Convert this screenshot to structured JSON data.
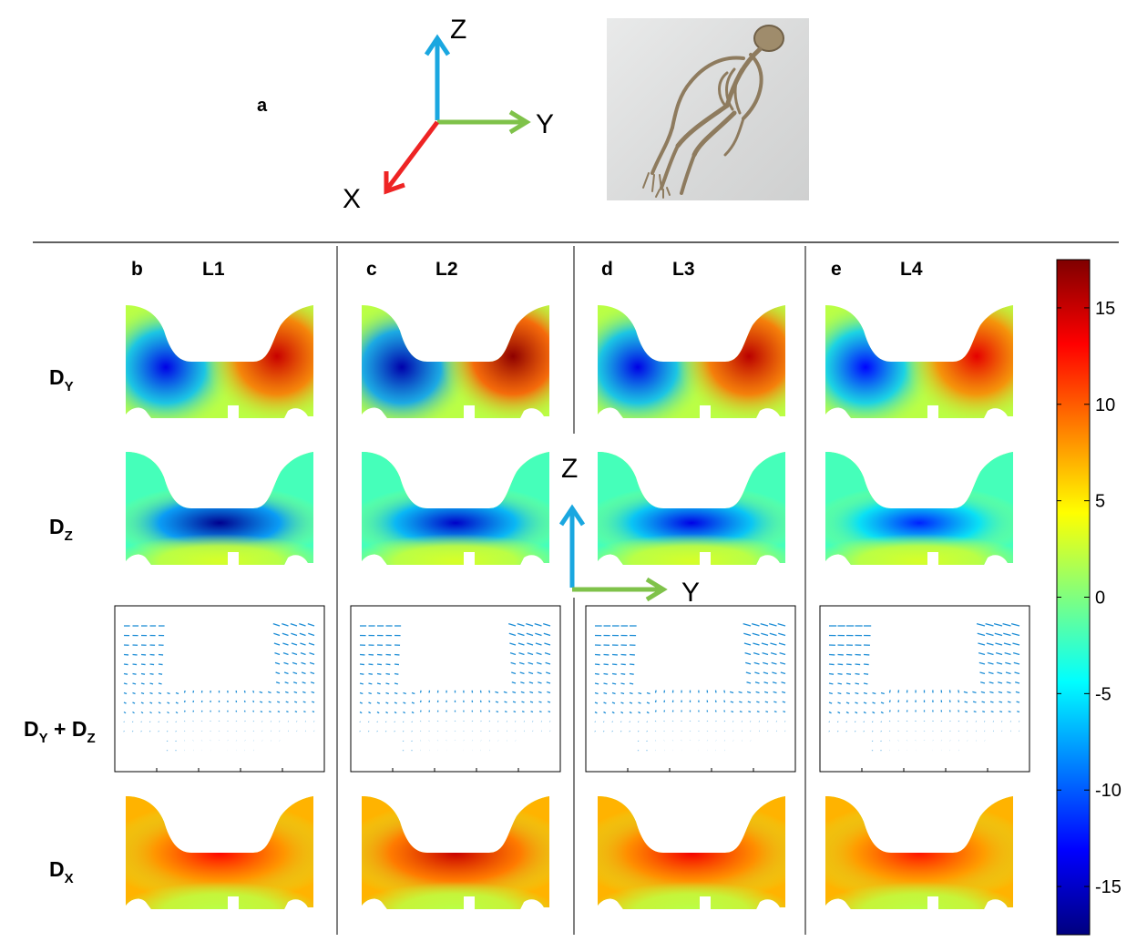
{
  "panel_a_label": "a",
  "axes_top": {
    "z": "Z",
    "y": "Y",
    "x": "X"
  },
  "axes_mid": {
    "z": "Z",
    "y": "Y"
  },
  "columns": [
    {
      "letter": "b",
      "level": "L1"
    },
    {
      "letter": "c",
      "level": "L2"
    },
    {
      "letter": "d",
      "level": "L3"
    },
    {
      "letter": "e",
      "level": "L4"
    }
  ],
  "rows": [
    {
      "main": "D",
      "sub": "Y",
      "main2": "",
      "sub2": ""
    },
    {
      "main": "D",
      "sub": "Z",
      "main2": "",
      "sub2": ""
    },
    {
      "main": "D",
      "sub": "Y",
      "main2": " + D",
      "sub2": "Z"
    },
    {
      "main": "D",
      "sub": "X",
      "main2": "",
      "sub2": ""
    }
  ],
  "colorbar": {
    "min": -17.5,
    "max": 17.5,
    "ticks": [
      "15",
      "10",
      "5",
      "0",
      "-5",
      "-10",
      "-15"
    ],
    "tick_values": [
      15,
      10,
      5,
      0,
      -5,
      -10,
      -15
    ]
  },
  "field_levels": {
    "dy": [
      [
        -14,
        15
      ],
      [
        -16,
        17
      ],
      [
        -14,
        15.5
      ],
      [
        -13,
        14
      ]
    ],
    "dz": [
      -17,
      -15,
      -14,
      -12
    ],
    "dx": [
      13,
      15,
      13.5,
      12.5
    ]
  },
  "colors": {
    "axis_z": "#1aa7e0",
    "axis_y": "#7fc24a",
    "axis_x": "#ee2424",
    "quiver": "#1f8ed6"
  },
  "photo_icon": "skeleton-image"
}
